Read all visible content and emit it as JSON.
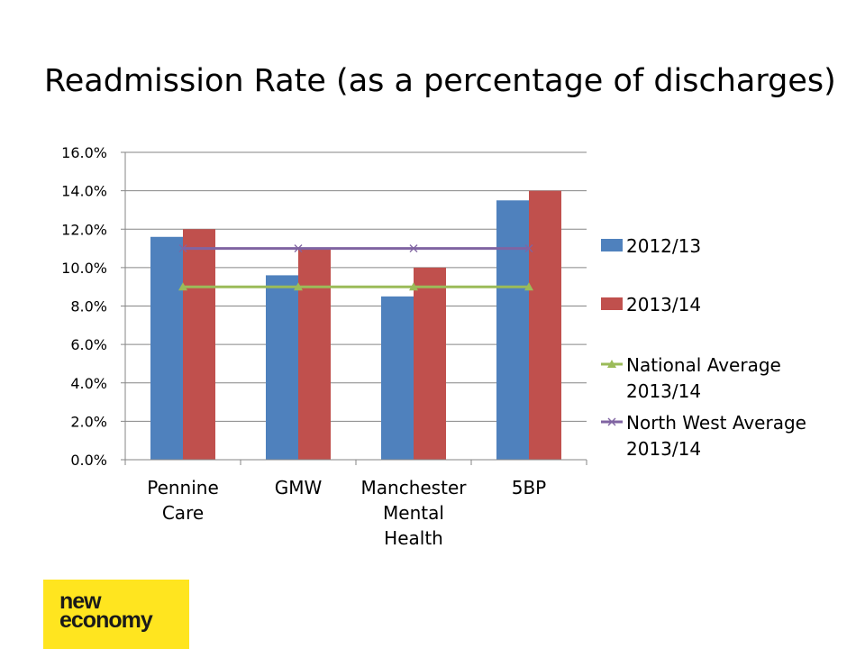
{
  "title": "Readmission Rate (as a percentage of discharges)",
  "logo": {
    "line1": "new",
    "line2": "economy"
  },
  "chart_data": {
    "type": "bar",
    "title": "",
    "categories": [
      [
        "Pennine",
        "Care"
      ],
      [
        "GMW"
      ],
      [
        "Manchester",
        "Mental",
        "Health"
      ],
      [
        "5BP"
      ]
    ],
    "yticks": [
      "0.0%",
      "2.0%",
      "4.0%",
      "6.0%",
      "8.0%",
      "10.0%",
      "12.0%",
      "14.0%",
      "16.0%"
    ],
    "ylim": [
      0,
      16
    ],
    "grid": true,
    "legend_position": "right",
    "bar_series": [
      {
        "name": "2012/13",
        "color": "#4f81bd",
        "values": [
          11.6,
          9.6,
          8.5,
          13.5
        ]
      },
      {
        "name": "2013/14",
        "color": "#c0504d",
        "values": [
          12.0,
          11.0,
          10.0,
          14.0
        ]
      }
    ],
    "line_series": [
      {
        "name": [
          "National Average",
          "2013/14"
        ],
        "color": "#9bbb59",
        "marker": "triangle",
        "values": [
          9.0,
          9.0,
          9.0,
          9.0
        ]
      },
      {
        "name": [
          "North West Average",
          "2013/14"
        ],
        "color": "#8064a2",
        "marker": "x",
        "values": [
          11.0,
          11.0,
          11.0,
          11.0
        ]
      }
    ]
  }
}
